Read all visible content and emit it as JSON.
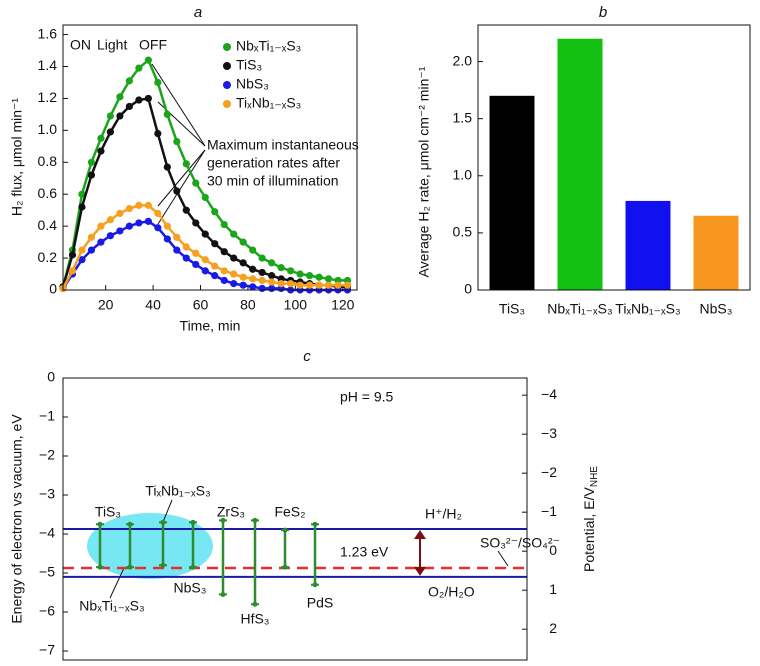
{
  "chart_data": [
    {
      "type": "line",
      "title": "a",
      "xlabel": "Time, min",
      "ylabel": "H₂ flux, μmol min⁻¹",
      "xlim": [
        2,
        126
      ],
      "xticks": [
        20,
        40,
        60,
        80,
        100,
        120
      ],
      "ylim": [
        0,
        1.66
      ],
      "yticks": [
        0,
        0.2,
        0.4,
        0.6,
        0.8,
        {
          "value": 1,
          "label": "1.0"
        },
        1.2,
        1.4,
        1.6
      ],
      "x": [
        2,
        6,
        10,
        14,
        18,
        22,
        26,
        30,
        34,
        38,
        42,
        46,
        50,
        54,
        58,
        62,
        66,
        70,
        74,
        78,
        82,
        86,
        90,
        94,
        98,
        102,
        106,
        110,
        114,
        118,
        122
      ],
      "series": [
        {
          "name": "NbₓTi₁₋ₓS₃",
          "color": "#1aa51a",
          "values": [
            0.02,
            0.25,
            0.6,
            0.8,
            0.95,
            1.09,
            1.21,
            1.31,
            1.39,
            1.44,
            1.3,
            1.1,
            0.93,
            0.79,
            0.67,
            0.58,
            0.49,
            0.41,
            0.35,
            0.3,
            0.25,
            0.2,
            0.17,
            0.14,
            0.12,
            0.1,
            0.09,
            0.08,
            0.07,
            0.06,
            0.06
          ]
        },
        {
          "name": "TiS₃",
          "color": "#111111",
          "values": [
            0.02,
            0.22,
            0.52,
            0.72,
            0.87,
            0.99,
            1.09,
            1.15,
            1.19,
            1.2,
            0.98,
            0.77,
            0.62,
            0.5,
            0.42,
            0.35,
            0.29,
            0.24,
            0.2,
            0.17,
            0.13,
            0.11,
            0.09,
            0.07,
            0.06,
            0.05,
            0.04,
            0.03,
            0.03,
            0.02,
            0.02
          ]
        },
        {
          "name": "NbS₃",
          "color": "#1a1ae6",
          "values": [
            0.01,
            0.1,
            0.19,
            0.25,
            0.3,
            0.34,
            0.37,
            0.4,
            0.42,
            0.43,
            0.39,
            0.32,
            0.25,
            0.2,
            0.16,
            0.12,
            0.09,
            0.06,
            0.04,
            0.03,
            0.02,
            0.01,
            0.01,
            0.01,
            0,
            0,
            0,
            0,
            0,
            0,
            0
          ]
        },
        {
          "name": "TiₓNb₁₋ₓS₃",
          "color": "#f5a020",
          "values": [
            0.01,
            0.12,
            0.25,
            0.33,
            0.4,
            0.44,
            0.48,
            0.51,
            0.53,
            0.53,
            0.48,
            0.4,
            0.33,
            0.27,
            0.23,
            0.19,
            0.15,
            0.12,
            0.1,
            0.08,
            0.07,
            0.06,
            0.05,
            0.04,
            0.04,
            0.03,
            0.03,
            0.03,
            0.03,
            0.03,
            0.03
          ]
        }
      ],
      "annotations": [
        {
          "text": "ON"
        },
        {
          "text": "Light",
          "color": "#e8322a"
        },
        {
          "text": "OFF"
        },
        {
          "text": "Maximum instantaneous"
        },
        {
          "text": "generation rates after"
        },
        {
          "text": "30 min of illumination"
        }
      ]
    },
    {
      "type": "bar",
      "title": "b",
      "ylabel": "Average H₂ rate, μmol cm⁻² min⁻¹",
      "categories": [
        "TiS₃",
        "NbₓTi₁₋ₓS₃",
        "TiₓNb₁₋ₓS₃",
        "NbS₃"
      ],
      "values": [
        1.7,
        2.2,
        0.78,
        0.65
      ],
      "colors": [
        "#000000",
        "#11c011",
        "#1010f0",
        "#f7961e"
      ],
      "ylim": [
        0,
        2.32
      ],
      "yticks": [
        0,
        0.5,
        {
          "value": 1,
          "label": "1.0"
        },
        1.5,
        {
          "value": 2,
          "label": "2.0"
        }
      ]
    },
    {
      "type": "bands",
      "title": "c",
      "ylabel": "Energy of electron vs vacuum, eV",
      "y2label": [
        "Potential, E/V",
        "NHE"
      ],
      "ylim": [
        -7.23,
        0
      ],
      "yticks": [
        0,
        {
          "value": -1,
          "label": "−1"
        },
        {
          "value": -2,
          "label": "−2"
        },
        {
          "value": -3,
          "label": "−3"
        },
        {
          "value": -4,
          "label": "−4"
        },
        {
          "value": -5,
          "label": "−5"
        },
        {
          "value": -6,
          "label": "−6"
        },
        {
          "value": -7,
          "label": "−7"
        }
      ],
      "y2lim": [
        2.79,
        -4.44
      ],
      "y2ticks": [
        {
          "value": -4,
          "label": "−4"
        },
        {
          "value": -3,
          "label": "−3"
        },
        {
          "value": -2,
          "label": "−2"
        },
        {
          "value": -1,
          "label": "−1"
        },
        0,
        1,
        2
      ],
      "band_color": "#2e8b2e",
      "bands": [
        {
          "name": "TiS₃",
          "cb": -3.75,
          "vb": -4.85
        },
        {
          "name": "NbₓTi₁₋ₓS₃",
          "cb": -3.75,
          "vb": -4.85
        },
        {
          "name": "TiₓNb₁₋ₓS₃",
          "cb": -3.7,
          "vb": -4.8
        },
        {
          "name": "NbS₃",
          "cb": -3.7,
          "vb": -4.85
        },
        {
          "name": "ZrS₃",
          "cb": -3.65,
          "vb": -5.55
        },
        {
          "name": "HfS₃",
          "cb": -3.65,
          "vb": -5.8
        },
        {
          "name": "FeS₂",
          "cb": -3.9,
          "vb": -4.85
        },
        {
          "name": "PdS",
          "cb": -3.75,
          "vb": -5.3
        }
      ],
      "levels": [
        {
          "name": "H⁺/H₂",
          "value": -3.87,
          "color": "#1a1aa8"
        },
        {
          "name": "O₂/H₂O",
          "value": -5.1,
          "color": "#1a1aa8"
        },
        {
          "name": "SO₃²⁻/SO₄²⁻",
          "value": -4.87,
          "color": "#e03030",
          "dashed": true
        }
      ],
      "gap_label": "1.23 eV",
      "annotation": "pH = 9.5"
    }
  ]
}
